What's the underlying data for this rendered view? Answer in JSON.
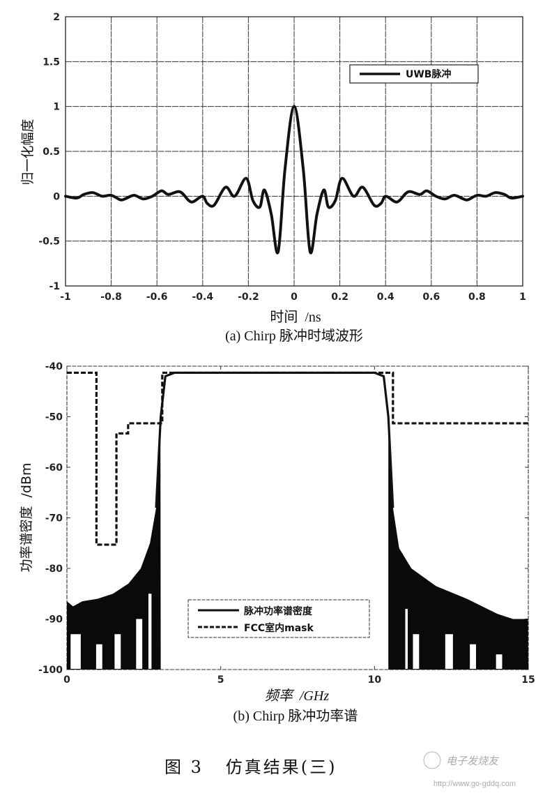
{
  "figure": {
    "title": "图 3   仿真结果(三)",
    "watermark_text": "http://www.go-gddq.com",
    "watermark_logo_text": "电子发烧友"
  },
  "chart_data": [
    {
      "id": "a",
      "type": "line",
      "title": "",
      "caption": "(a) Chirp 脉冲时域波形",
      "xlabel": "时间  /ns",
      "ylabel": "归一化幅度",
      "xlim": [
        -1,
        1
      ],
      "ylim": [
        -1,
        2
      ],
      "xticks": [
        "-1",
        "-0.8",
        "-0.6",
        "-0.4",
        "-0.2",
        "0",
        "0.2",
        "0.4",
        "0.6",
        "0.8",
        "1"
      ],
      "yticks": [
        "-1",
        "-0.5",
        "0",
        "0.5",
        "1",
        "1.5",
        "2"
      ],
      "grid": true,
      "legend": {
        "position": "upper right",
        "entries": [
          {
            "label": "UWB脉冲",
            "style": "solid"
          }
        ]
      },
      "series": [
        {
          "name": "UWB脉冲",
          "x": [
            -1.0,
            -0.95,
            -0.92,
            -0.88,
            -0.84,
            -0.8,
            -0.76,
            -0.74,
            -0.7,
            -0.66,
            -0.62,
            -0.58,
            -0.55,
            -0.5,
            -0.46,
            -0.44,
            -0.4,
            -0.38,
            -0.35,
            -0.3,
            -0.26,
            -0.21,
            -0.18,
            -0.15,
            -0.13,
            -0.1,
            -0.07,
            -0.04,
            0.0,
            0.04,
            0.07,
            0.1,
            0.13,
            0.15,
            0.18,
            0.21,
            0.26,
            0.3,
            0.35,
            0.38,
            0.4,
            0.44,
            0.46,
            0.5,
            0.55,
            0.58,
            0.62,
            0.66,
            0.7,
            0.74,
            0.76,
            0.8,
            0.84,
            0.88,
            0.92,
            0.95,
            1.0
          ],
          "y": [
            0.0,
            -0.02,
            0.02,
            0.04,
            0.0,
            0.01,
            -0.04,
            -0.03,
            0.01,
            -0.03,
            0.0,
            0.06,
            0.02,
            0.05,
            -0.05,
            -0.06,
            0.0,
            -0.08,
            -0.1,
            0.1,
            0.0,
            0.2,
            -0.05,
            -0.12,
            0.07,
            -0.2,
            -0.62,
            0.3,
            1.0,
            0.3,
            -0.62,
            -0.2,
            0.07,
            -0.12,
            -0.05,
            0.2,
            0.0,
            0.1,
            -0.1,
            -0.08,
            0.0,
            -0.06,
            -0.05,
            0.05,
            0.02,
            0.06,
            0.0,
            -0.03,
            0.01,
            -0.03,
            -0.04,
            0.01,
            0.0,
            0.04,
            0.02,
            -0.02,
            0.0
          ]
        }
      ]
    },
    {
      "id": "b",
      "type": "line",
      "title": "",
      "caption": "(b) Chirp 脉冲功率谱",
      "xlabel": "频率  /GHz",
      "ylabel": "功率谱密度  /dBm",
      "xlim": [
        0,
        15
      ],
      "ylim": [
        -100,
        -40
      ],
      "xticks": [
        "0",
        "5",
        "10",
        "15"
      ],
      "yticks": [
        "-100",
        "-90",
        "-80",
        "-70",
        "-60",
        "-50",
        "-40"
      ],
      "grid": false,
      "legend": {
        "position": "center",
        "entries": [
          {
            "label": "脉冲功率谱密度",
            "style": "solid"
          },
          {
            "label": "FCC室内mask",
            "style": "dashed"
          }
        ]
      },
      "series": [
        {
          "name": "脉冲功率谱密度",
          "x": [
            0.0,
            0.2,
            0.5,
            1.0,
            1.5,
            2.0,
            2.4,
            2.7,
            2.9,
            3.05,
            3.2,
            3.5,
            5.0,
            7.5,
            10.0,
            10.3,
            10.45,
            10.6,
            10.8,
            11.2,
            12.0,
            13.0,
            14.0,
            14.5,
            15.0
          ],
          "y_envelope_top": [
            -86.5,
            -87.5,
            -86.5,
            -86.0,
            -85.0,
            -83.0,
            -80.0,
            -75.0,
            -68.0,
            -50.0,
            -42.0,
            -41.3,
            -41.3,
            -41.3,
            -41.3,
            -42.0,
            -50.0,
            -68.0,
            -76.0,
            -80.0,
            -83.5,
            -86.0,
            -89.0,
            -90.0,
            -90.0
          ],
          "y_envelope_bottom": [
            -100,
            -100,
            -100,
            -100,
            -100,
            -100,
            -100,
            -90,
            -80,
            -60,
            -42,
            -41.5,
            -41.5,
            -41.5,
            -41.5,
            -42,
            -60,
            -80,
            -90,
            -100,
            -100,
            -100,
            -100,
            -100,
            -100
          ],
          "note": "dense oscillation below the envelope in the sidelobe regions (0–3 GHz, 10.6–15 GHz); flat ~-41.3 dBm passband 3.1–10.6 GHz"
        },
        {
          "name": "FCC室内mask",
          "x": [
            0.0,
            0.96,
            0.96,
            1.61,
            1.61,
            1.99,
            1.99,
            3.1,
            3.1,
            10.6,
            10.6,
            15.0
          ],
          "y": [
            -41.3,
            -41.3,
            -75.3,
            -75.3,
            -53.3,
            -53.3,
            -51.3,
            -51.3,
            -41.3,
            -41.3,
            -51.3,
            -51.3
          ]
        }
      ]
    }
  ]
}
